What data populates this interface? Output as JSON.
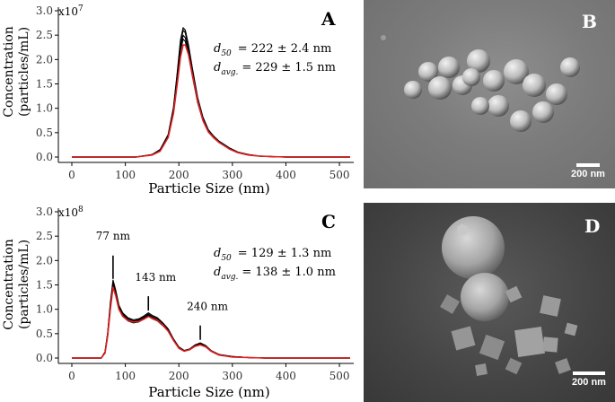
{
  "figure": {
    "panel_A": {
      "letter": "A",
      "multiplier": "x10",
      "exponent": "7",
      "ylabel_line1": "Concentration",
      "ylabel_line2": "(particles/mL)",
      "xlabel": "Particle Size (nm)",
      "d50_sym": "d",
      "d50_sub": "50",
      "d50_value": "= 222 ± 2.4 nm",
      "davg_sym": "d",
      "davg_sub": "avg.",
      "davg_value": "= 229 ± 1.5 nm"
    },
    "panel_C": {
      "letter": "C",
      "multiplier": "x10",
      "exponent": "8",
      "ylabel_line1": "Concentration",
      "ylabel_line2": "(particles/mL)",
      "xlabel": "Particle Size (nm)",
      "d50_sym": "d",
      "d50_sub": "50",
      "d50_value": "= 129 ± 1.3 nm",
      "davg_sym": "d",
      "davg_sub": "avg.",
      "davg_value": "= 138 ± 1.0 nm",
      "peak_labels": [
        "77 nm",
        "143 nm",
        "240 nm"
      ]
    },
    "panel_B": {
      "letter": "B",
      "scale_label": "200 nm"
    },
    "panel_D": {
      "letter": "D",
      "scale_label": "200 nm"
    }
  },
  "chart_data": [
    {
      "type": "line",
      "panel": "A",
      "xlim": [
        0,
        520
      ],
      "ylim": [
        0,
        3.0
      ],
      "xticks": [
        0,
        100,
        200,
        300,
        400,
        500
      ],
      "yticks": [
        0.0,
        0.5,
        1.0,
        1.5,
        2.0,
        2.5,
        3.0
      ],
      "series": [
        {
          "color": "#000000",
          "x": [
            0,
            120,
            150,
            165,
            180,
            190,
            197,
            203,
            208,
            212,
            218,
            225,
            235,
            245,
            255,
            265,
            275,
            285,
            295,
            310,
            330,
            350,
            370,
            400,
            520
          ],
          "y": [
            0,
            0,
            0.05,
            0.15,
            0.45,
            1.0,
            1.7,
            2.35,
            2.6,
            2.55,
            2.25,
            1.8,
            1.2,
            0.8,
            0.55,
            0.42,
            0.32,
            0.25,
            0.18,
            0.1,
            0.05,
            0.02,
            0.01,
            0,
            0
          ]
        },
        {
          "color": "#e02020",
          "x": [
            0,
            120,
            150,
            165,
            180,
            190,
            197,
            203,
            208,
            212,
            218,
            225,
            235,
            245,
            255,
            265,
            275,
            285,
            295,
            310,
            330,
            350,
            370,
            400,
            520
          ],
          "y": [
            0,
            0,
            0.04,
            0.12,
            0.4,
            0.9,
            1.5,
            2.05,
            2.3,
            2.3,
            2.1,
            1.7,
            1.15,
            0.75,
            0.52,
            0.4,
            0.3,
            0.23,
            0.16,
            0.09,
            0.04,
            0.02,
            0.01,
            0,
            0
          ]
        }
      ]
    },
    {
      "type": "line",
      "panel": "C",
      "xlim": [
        0,
        520
      ],
      "ylim": [
        0,
        3.0
      ],
      "xticks": [
        0,
        100,
        200,
        300,
        400,
        500
      ],
      "yticks": [
        0.0,
        0.5,
        1.0,
        1.5,
        2.0,
        2.5,
        3.0
      ],
      "peaks": [
        {
          "x": 77,
          "y": 1.55,
          "label": "77 nm"
        },
        {
          "x": 143,
          "y": 0.9,
          "label": "143 nm"
        },
        {
          "x": 240,
          "y": 0.3,
          "label": "240 nm"
        }
      ],
      "series": [
        {
          "color": "#000000",
          "x": [
            0,
            55,
            62,
            67,
            72,
            77,
            82,
            88,
            95,
            105,
            115,
            125,
            135,
            143,
            150,
            160,
            170,
            180,
            190,
            200,
            210,
            220,
            230,
            240,
            250,
            260,
            275,
            300,
            330,
            360,
            400,
            520
          ],
          "y": [
            0,
            0,
            0.12,
            0.5,
            1.1,
            1.55,
            1.35,
            1.05,
            0.9,
            0.8,
            0.76,
            0.78,
            0.84,
            0.9,
            0.85,
            0.8,
            0.7,
            0.58,
            0.38,
            0.22,
            0.15,
            0.18,
            0.26,
            0.3,
            0.25,
            0.15,
            0.07,
            0.03,
            0.01,
            0,
            0,
            0
          ]
        },
        {
          "color": "#e02020",
          "x": [
            0,
            55,
            62,
            67,
            72,
            77,
            82,
            88,
            95,
            105,
            115,
            125,
            135,
            143,
            150,
            160,
            170,
            180,
            190,
            200,
            210,
            220,
            230,
            240,
            250,
            260,
            275,
            300,
            330,
            360,
            400,
            520
          ],
          "y": [
            0,
            0,
            0.1,
            0.45,
            1.0,
            1.45,
            1.28,
            1.0,
            0.86,
            0.77,
            0.74,
            0.75,
            0.8,
            0.85,
            0.82,
            0.77,
            0.68,
            0.55,
            0.36,
            0.2,
            0.14,
            0.17,
            0.24,
            0.27,
            0.23,
            0.14,
            0.06,
            0.02,
            0.01,
            0,
            0,
            0
          ]
        }
      ]
    }
  ]
}
